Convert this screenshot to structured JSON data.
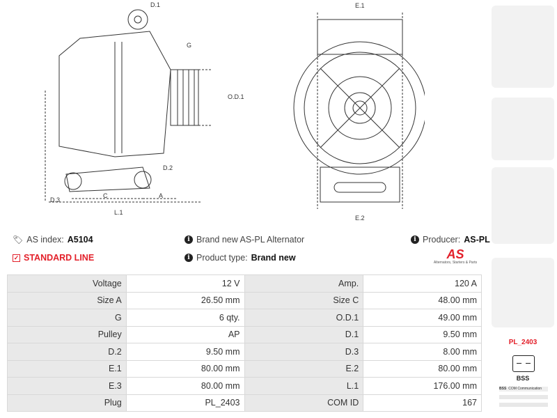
{
  "header": {
    "as_index_label": "AS index:",
    "as_index_value": "A5104",
    "standard_line": "STANDARD LINE",
    "description": "Brand new AS-PL Alternator",
    "product_type_label": "Product type:",
    "product_type_value": "Brand new",
    "producer_label": "Producer:",
    "producer_value": "AS-PL",
    "logo_text": "AS",
    "logo_tagline": "Alternators, Starters & Parts"
  },
  "colors": {
    "accent": "#e3202a",
    "label_bg": "#e9e9e9"
  },
  "diagram_labels": {
    "d1": "D.1",
    "g": "G",
    "od1": "O.D.1",
    "d2": "D.2",
    "d3": "D.3",
    "c": "C",
    "a": "A",
    "l1": "L.1",
    "e1": "E.1",
    "e2": "E.2"
  },
  "specs": [
    [
      "Voltage",
      "12 V",
      "Amp.",
      "120 A"
    ],
    [
      "Size A",
      "26.50 mm",
      "Size C",
      "48.00 mm"
    ],
    [
      "G",
      "6 qty.",
      "O.D.1",
      "49.00 mm"
    ],
    [
      "Pulley",
      "AP",
      "D.1",
      "9.50 mm"
    ],
    [
      "D.2",
      "9.50 mm",
      "D.3",
      "8.00 mm"
    ],
    [
      "E.1",
      "80.00 mm",
      "E.2",
      "80.00 mm"
    ],
    [
      "E.3",
      "80.00 mm",
      "L.1",
      "176.00 mm"
    ],
    [
      "Plug",
      "PL_2403",
      "COM ID",
      "167"
    ]
  ],
  "plug": {
    "name": "PL_2403",
    "type": "BSS",
    "legend_code": "BSS",
    "legend_text": "COM Communication"
  }
}
